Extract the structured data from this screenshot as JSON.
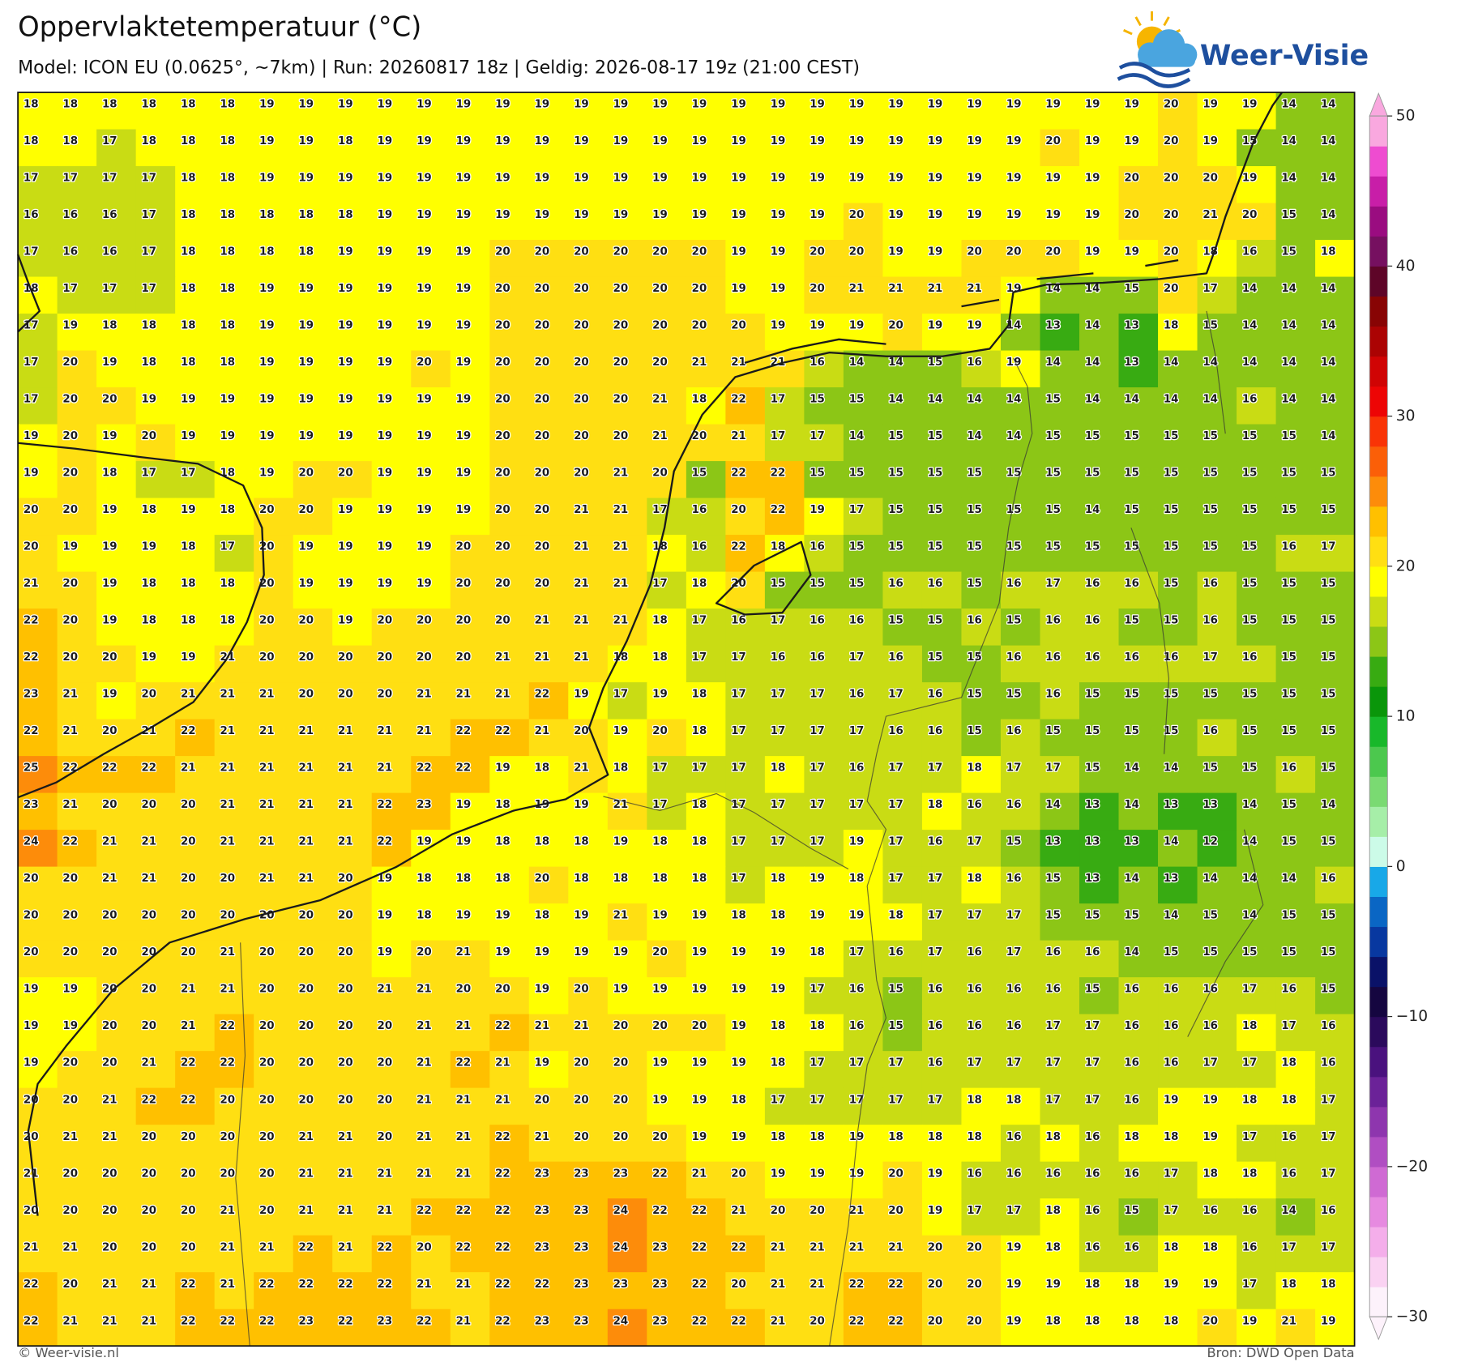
{
  "chart_data": {
    "type": "heatmap",
    "title": "Oppervlaktetemperatuur (°C)",
    "subtitle": "Model: ICON EU (0.0625°, ~7km) | Run: 20260817 18z | Geldig: 2026-08-17 19z (21:00 CEST)",
    "values": [
      [
        18,
        18,
        18,
        18,
        18,
        18,
        19,
        19,
        19,
        19,
        19,
        19,
        19,
        19,
        19,
        19,
        19,
        19,
        19,
        19,
        19,
        19,
        19,
        19,
        19,
        19,
        19,
        19,
        19,
        20,
        19,
        19,
        14,
        14
      ],
      [
        18,
        18,
        17,
        18,
        18,
        18,
        19,
        19,
        18,
        19,
        19,
        19,
        19,
        19,
        19,
        19,
        19,
        19,
        19,
        19,
        19,
        19,
        19,
        19,
        19,
        19,
        20,
        19,
        19,
        20,
        19,
        15,
        14,
        14
      ],
      [
        17,
        17,
        17,
        17,
        18,
        18,
        19,
        19,
        19,
        19,
        19,
        19,
        19,
        19,
        19,
        19,
        19,
        19,
        19,
        19,
        19,
        19,
        19,
        19,
        19,
        19,
        19,
        19,
        20,
        20,
        20,
        19,
        14,
        14
      ],
      [
        16,
        16,
        16,
        17,
        18,
        18,
        18,
        18,
        18,
        19,
        19,
        19,
        19,
        19,
        19,
        19,
        19,
        19,
        19,
        19,
        19,
        20,
        19,
        19,
        19,
        19,
        19,
        19,
        20,
        20,
        21,
        20,
        15,
        14
      ],
      [
        17,
        16,
        16,
        17,
        18,
        18,
        18,
        18,
        19,
        19,
        19,
        19,
        20,
        20,
        20,
        20,
        20,
        20,
        19,
        19,
        20,
        20,
        19,
        19,
        20,
        20,
        20,
        19,
        19,
        20,
        18,
        16,
        15,
        18
      ],
      [
        18,
        17,
        17,
        17,
        18,
        18,
        19,
        19,
        19,
        19,
        19,
        19,
        20,
        20,
        20,
        20,
        20,
        20,
        19,
        19,
        20,
        21,
        21,
        21,
        21,
        19,
        14,
        14,
        15,
        20,
        17,
        14,
        14,
        14
      ],
      [
        17,
        19,
        18,
        18,
        18,
        18,
        19,
        19,
        19,
        19,
        19,
        19,
        20,
        20,
        20,
        20,
        20,
        20,
        20,
        19,
        19,
        19,
        20,
        19,
        19,
        14,
        13,
        14,
        13,
        18,
        15,
        14,
        14,
        14
      ],
      [
        17,
        20,
        19,
        18,
        18,
        18,
        19,
        19,
        19,
        19,
        20,
        19,
        20,
        20,
        20,
        20,
        20,
        21,
        21,
        21,
        16,
        14,
        14,
        15,
        16,
        19,
        14,
        14,
        13,
        14,
        14,
        14,
        14,
        14
      ],
      [
        17,
        20,
        20,
        19,
        19,
        19,
        19,
        19,
        19,
        19,
        19,
        19,
        20,
        20,
        20,
        20,
        21,
        18,
        22,
        17,
        15,
        15,
        14,
        14,
        14,
        14,
        15,
        14,
        14,
        14,
        14,
        16,
        14,
        14
      ],
      [
        19,
        20,
        19,
        20,
        19,
        19,
        19,
        19,
        19,
        19,
        19,
        19,
        20,
        20,
        20,
        20,
        21,
        20,
        21,
        17,
        17,
        14,
        15,
        15,
        14,
        14,
        15,
        15,
        15,
        15,
        15,
        15,
        15,
        14
      ],
      [
        19,
        20,
        18,
        17,
        17,
        18,
        19,
        20,
        20,
        19,
        19,
        19,
        20,
        20,
        20,
        21,
        20,
        15,
        22,
        22,
        15,
        15,
        15,
        15,
        15,
        15,
        15,
        15,
        15,
        15,
        15,
        15,
        15,
        15
      ],
      [
        20,
        20,
        19,
        18,
        19,
        18,
        20,
        20,
        19,
        19,
        19,
        19,
        20,
        20,
        21,
        21,
        17,
        16,
        20,
        22,
        19,
        17,
        15,
        15,
        15,
        15,
        15,
        14,
        15,
        15,
        15,
        15,
        15,
        15
      ],
      [
        20,
        19,
        19,
        19,
        18,
        17,
        20,
        19,
        19,
        19,
        19,
        20,
        20,
        20,
        21,
        21,
        18,
        16,
        22,
        18,
        16,
        15,
        15,
        15,
        15,
        15,
        15,
        15,
        15,
        15,
        15,
        15,
        16,
        17
      ],
      [
        21,
        20,
        19,
        18,
        18,
        18,
        20,
        19,
        19,
        19,
        19,
        20,
        20,
        20,
        21,
        21,
        17,
        18,
        20,
        15,
        15,
        15,
        16,
        16,
        15,
        16,
        17,
        16,
        16,
        15,
        16,
        15,
        15,
        15
      ],
      [
        22,
        20,
        19,
        18,
        18,
        18,
        20,
        20,
        19,
        20,
        20,
        20,
        20,
        21,
        21,
        21,
        18,
        17,
        16,
        17,
        16,
        16,
        15,
        15,
        16,
        15,
        16,
        16,
        15,
        15,
        16,
        15,
        15,
        15
      ],
      [
        22,
        20,
        20,
        19,
        19,
        21,
        20,
        20,
        20,
        20,
        20,
        20,
        21,
        21,
        21,
        18,
        18,
        17,
        17,
        16,
        16,
        17,
        16,
        15,
        15,
        16,
        16,
        16,
        16,
        16,
        17,
        16,
        15,
        15
      ],
      [
        23,
        21,
        19,
        20,
        21,
        21,
        21,
        20,
        20,
        20,
        21,
        21,
        21,
        22,
        19,
        17,
        19,
        18,
        17,
        17,
        17,
        16,
        17,
        16,
        15,
        15,
        16,
        15,
        15,
        15,
        15,
        15,
        15,
        15
      ],
      [
        22,
        21,
        20,
        21,
        22,
        21,
        21,
        21,
        21,
        21,
        21,
        22,
        22,
        21,
        20,
        19,
        20,
        18,
        17,
        17,
        17,
        17,
        16,
        16,
        15,
        16,
        15,
        15,
        15,
        15,
        16,
        15,
        15,
        15
      ],
      [
        25,
        22,
        22,
        22,
        21,
        21,
        21,
        21,
        21,
        21,
        22,
        22,
        19,
        18,
        21,
        18,
        17,
        17,
        17,
        18,
        17,
        16,
        17,
        17,
        18,
        17,
        17,
        15,
        14,
        14,
        15,
        15,
        16,
        15
      ],
      [
        23,
        21,
        20,
        20,
        20,
        21,
        21,
        21,
        21,
        22,
        23,
        19,
        18,
        19,
        19,
        21,
        17,
        18,
        17,
        17,
        17,
        17,
        17,
        18,
        16,
        16,
        14,
        13,
        14,
        13,
        13,
        14,
        15,
        14
      ],
      [
        24,
        22,
        21,
        21,
        20,
        21,
        21,
        21,
        21,
        22,
        19,
        19,
        18,
        18,
        18,
        19,
        18,
        18,
        17,
        17,
        17,
        19,
        17,
        16,
        17,
        15,
        13,
        13,
        13,
        14,
        12,
        14,
        15,
        15
      ],
      [
        20,
        20,
        21,
        21,
        20,
        20,
        21,
        21,
        20,
        19,
        18,
        18,
        18,
        20,
        18,
        18,
        18,
        18,
        17,
        18,
        19,
        18,
        17,
        17,
        18,
        16,
        15,
        13,
        14,
        13,
        14,
        14,
        14,
        16
      ],
      [
        20,
        20,
        20,
        20,
        20,
        20,
        20,
        20,
        20,
        19,
        18,
        19,
        19,
        18,
        19,
        21,
        19,
        19,
        18,
        18,
        19,
        19,
        18,
        17,
        17,
        17,
        15,
        15,
        15,
        14,
        15,
        14,
        15,
        15
      ],
      [
        20,
        20,
        20,
        20,
        20,
        21,
        20,
        20,
        20,
        19,
        20,
        21,
        19,
        19,
        19,
        19,
        20,
        19,
        19,
        19,
        18,
        17,
        16,
        17,
        16,
        17,
        16,
        16,
        14,
        15,
        15,
        15,
        15,
        15
      ],
      [
        19,
        19,
        20,
        20,
        21,
        21,
        20,
        20,
        20,
        21,
        21,
        20,
        20,
        19,
        20,
        19,
        19,
        19,
        19,
        19,
        17,
        16,
        15,
        16,
        16,
        16,
        16,
        15,
        16,
        16,
        16,
        17,
        16,
        15
      ],
      [
        19,
        19,
        20,
        20,
        21,
        22,
        20,
        20,
        20,
        20,
        21,
        21,
        22,
        21,
        21,
        20,
        20,
        20,
        19,
        18,
        18,
        16,
        15,
        16,
        16,
        16,
        17,
        17,
        16,
        16,
        16,
        18,
        17,
        16
      ],
      [
        19,
        20,
        20,
        21,
        22,
        22,
        20,
        20,
        20,
        20,
        21,
        22,
        21,
        19,
        20,
        20,
        19,
        19,
        19,
        18,
        17,
        17,
        17,
        16,
        17,
        17,
        17,
        17,
        16,
        16,
        17,
        17,
        18,
        16
      ],
      [
        20,
        20,
        21,
        22,
        22,
        20,
        20,
        20,
        20,
        20,
        21,
        21,
        21,
        20,
        20,
        20,
        19,
        19,
        18,
        17,
        17,
        17,
        17,
        17,
        18,
        18,
        17,
        17,
        16,
        19,
        19,
        18,
        18,
        17
      ],
      [
        20,
        21,
        21,
        20,
        20,
        20,
        20,
        21,
        21,
        20,
        21,
        21,
        22,
        21,
        20,
        20,
        20,
        19,
        19,
        18,
        18,
        19,
        18,
        18,
        18,
        16,
        18,
        16,
        18,
        18,
        19,
        17,
        16,
        17
      ],
      [
        21,
        20,
        20,
        20,
        20,
        20,
        20,
        21,
        21,
        21,
        21,
        21,
        22,
        23,
        23,
        23,
        22,
        21,
        20,
        19,
        19,
        19,
        20,
        19,
        16,
        16,
        16,
        16,
        16,
        17,
        18,
        18,
        16,
        17
      ],
      [
        20,
        20,
        20,
        20,
        20,
        21,
        20,
        21,
        21,
        21,
        22,
        22,
        22,
        23,
        23,
        24,
        22,
        22,
        21,
        20,
        20,
        21,
        20,
        19,
        17,
        17,
        18,
        16,
        15,
        17,
        16,
        16,
        14,
        16
      ],
      [
        21,
        21,
        20,
        20,
        20,
        21,
        21,
        22,
        21,
        22,
        20,
        22,
        22,
        23,
        23,
        24,
        23,
        22,
        22,
        21,
        21,
        21,
        21,
        20,
        20,
        19,
        18,
        16,
        16,
        18,
        18,
        16,
        17,
        17
      ],
      [
        22,
        20,
        21,
        21,
        22,
        21,
        22,
        22,
        22,
        22,
        21,
        21,
        22,
        22,
        23,
        23,
        23,
        22,
        20,
        21,
        21,
        22,
        22,
        20,
        20,
        19,
        19,
        18,
        18,
        19,
        19,
        17,
        18,
        18
      ],
      [
        22,
        21,
        21,
        21,
        22,
        22,
        22,
        23,
        22,
        23,
        22,
        21,
        22,
        23,
        23,
        24,
        23,
        22,
        22,
        21,
        20,
        22,
        22,
        20,
        20,
        19,
        18,
        18,
        18,
        18,
        20,
        19,
        21,
        19
      ]
    ],
    "colorbar": {
      "lim": [
        -30,
        50
      ],
      "ticks": [
        50,
        40,
        30,
        20,
        10,
        0,
        {
          "value": -10,
          "label": "−10"
        },
        {
          "value": -20,
          "label": "−20"
        },
        {
          "value": -30,
          "label": "−30"
        }
      ],
      "colors": [
        "#fdf2fb",
        "#fad2f2",
        "#f4aeea",
        "#e68ae0",
        "#cf6ad3",
        "#b04ec2",
        "#8e36ae",
        "#6b2298",
        "#4a127e",
        "#2b0a5c",
        "#150640",
        "#0a1268",
        "#0838a0",
        "#0a66c4",
        "#18a8e8",
        "#ccfbe8",
        "#a6eea8",
        "#7ada72",
        "#4cc84e",
        "#18b82a",
        "#0a960a",
        "#38ab12",
        "#8cc616",
        "#c9dc14",
        "#ffff00",
        "#ffdf12",
        "#ffc000",
        "#fd8c0a",
        "#fb5f08",
        "#f93406",
        "#ed0505",
        "#d00404",
        "#ab0303",
        "#880404",
        "#5e0528",
        "#761060",
        "#9a0c80",
        "#c81ea8",
        "#ee4cd0",
        "#f9a8df"
      ]
    }
  },
  "logo": "Weer-Visie",
  "footer": {
    "credit": "© Weer-visie.nl",
    "source": "Bron: DWD Open Data"
  }
}
